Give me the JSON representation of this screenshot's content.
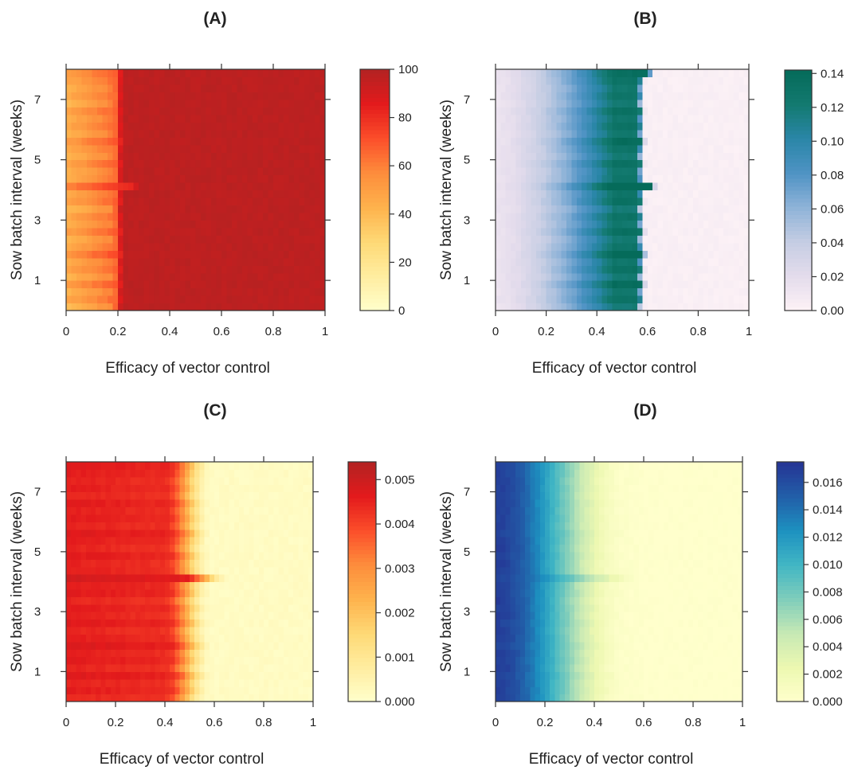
{
  "chart_data": [
    {
      "type": "heatmap",
      "title": "(A)",
      "xlabel": "Efficacy of vector control",
      "ylabel": "Sow batch interval (weeks)",
      "xlim": [
        0,
        1
      ],
      "ylim": [
        0,
        8
      ],
      "x_ticks": [
        0,
        0.2,
        0.4,
        0.6,
        0.8,
        1
      ],
      "x_tick_labels": [
        "0",
        "0.2",
        "0.4",
        "0.6",
        "0.8",
        "1"
      ],
      "y_ticks": [
        1,
        3,
        5,
        7
      ],
      "y_tick_labels": [
        "1",
        "3",
        "5",
        "7"
      ],
      "colorbar": {
        "min": 0,
        "max": 100,
        "ticks": [
          0,
          20,
          40,
          60,
          80,
          100
        ],
        "tick_labels": [
          "0",
          "20",
          "40",
          "60",
          "80",
          "100"
        ],
        "palette": [
          "#FFFFCC",
          "#FFEDA0",
          "#FED976",
          "#FEB24C",
          "#FD8D3C",
          "#FC4E2A",
          "#E31A1C",
          "#B22222"
        ]
      },
      "description_values": {
        "low_x_range": "30-70",
        "high_x_value": 95,
        "transition_efficacy": 0.22
      }
    },
    {
      "type": "heatmap",
      "title": "(B)",
      "xlabel": "Efficacy of vector control",
      "ylabel": "Sow batch interval (weeks)",
      "xlim": [
        0,
        1
      ],
      "ylim": [
        0,
        8
      ],
      "x_ticks": [
        0,
        0.2,
        0.4,
        0.6,
        0.8,
        1
      ],
      "x_tick_labels": [
        "0",
        "0.2",
        "0.4",
        "0.6",
        "0.8",
        "1"
      ],
      "y_ticks": [
        1,
        3,
        5,
        7
      ],
      "y_tick_labels": [
        "1",
        "3",
        "5",
        "7"
      ],
      "colorbar": {
        "min": 0,
        "max": 0.142,
        "ticks": [
          0,
          0.02,
          0.04,
          0.06,
          0.08,
          0.1,
          0.12,
          0.14
        ],
        "tick_labels": [
          "0.00",
          "0.02",
          "0.04",
          "0.06",
          "0.08",
          "0.10",
          "0.12",
          "0.14"
        ],
        "palette": [
          "#FDF2F6",
          "#E4DCEC",
          "#C5CDE3",
          "#8FB3D8",
          "#4F93C4",
          "#2A86A8",
          "#137A70",
          "#056B5A"
        ]
      },
      "description_values": {
        "peak_efficacy": 0.47,
        "cutoff_efficacy": 0.58
      }
    },
    {
      "type": "heatmap",
      "title": "(C)",
      "xlabel": "Efficacy of vector control",
      "ylabel": "Sow batch interval (weeks)",
      "xlim": [
        0,
        1
      ],
      "ylim": [
        0,
        8
      ],
      "x_ticks": [
        0,
        0.2,
        0.4,
        0.6,
        0.8,
        1
      ],
      "x_tick_labels": [
        "0",
        "0.2",
        "0.4",
        "0.6",
        "0.8",
        "1"
      ],
      "y_ticks": [
        1,
        3,
        5,
        7
      ],
      "y_tick_labels": [
        "1",
        "3",
        "5",
        "7"
      ],
      "colorbar": {
        "min": 0,
        "max": 0.0054,
        "ticks": [
          0,
          0.001,
          0.002,
          0.003,
          0.004,
          0.005
        ],
        "tick_labels": [
          "0.000",
          "0.001",
          "0.002",
          "0.003",
          "0.004",
          "0.005"
        ],
        "palette": [
          "#FFFFCC",
          "#FFEDA0",
          "#FED976",
          "#FEB24C",
          "#FD8D3C",
          "#FC4E2A",
          "#E31A1C",
          "#B22222"
        ]
      },
      "description_values": {
        "plateau_until": 0.4,
        "cutoff_efficacy": 0.58
      }
    },
    {
      "type": "heatmap",
      "title": "(D)",
      "xlabel": "Efficacy of vector control",
      "ylabel": "Sow batch interval (weeks)",
      "xlim": [
        0,
        1
      ],
      "ylim": [
        0,
        8
      ],
      "x_ticks": [
        0,
        0.2,
        0.4,
        0.6,
        0.8,
        1
      ],
      "x_tick_labels": [
        "0",
        "0.2",
        "0.4",
        "0.6",
        "0.8",
        "1"
      ],
      "y_ticks": [
        1,
        3,
        5,
        7
      ],
      "y_tick_labels": [
        "1",
        "3",
        "5",
        "7"
      ],
      "colorbar": {
        "min": 0,
        "max": 0.0175,
        "ticks": [
          0,
          0.002,
          0.004,
          0.006,
          0.008,
          0.01,
          0.012,
          0.014,
          0.016
        ],
        "tick_labels": [
          "0.000",
          "0.002",
          "0.004",
          "0.006",
          "0.008",
          "0.010",
          "0.012",
          "0.014",
          "0.016"
        ],
        "palette": [
          "#FFFFCC",
          "#EDF8B1",
          "#C7E9B4",
          "#7FCDBB",
          "#41B6C4",
          "#1D91C0",
          "#225EA8",
          "#253494"
        ]
      },
      "description_values": {
        "max_at_efficacy": 0,
        "cutoff_efficacy": 0.6
      }
    }
  ]
}
